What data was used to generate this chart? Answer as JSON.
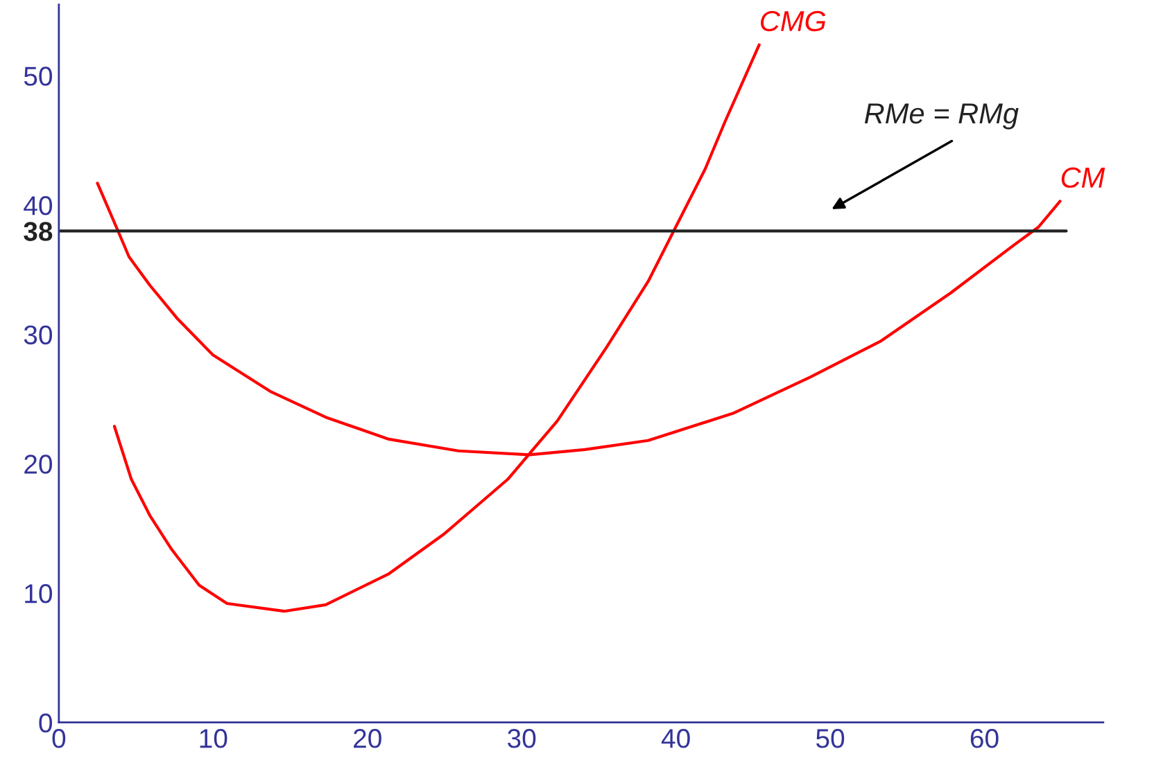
{
  "chart_data": {
    "type": "line",
    "xlim": [
      0,
      67.7
    ],
    "ylim": [
      0,
      55.5
    ],
    "xticks": [
      0,
      10,
      20,
      30,
      40,
      50,
      60
    ],
    "yticks": [
      0,
      10,
      20,
      30,
      {
        "value": 38,
        "label": "38"
      },
      40,
      50
    ],
    "grid": false,
    "legend": false,
    "marker": "none",
    "line_style": "solid",
    "series": [
      {
        "name": "CMG",
        "color": "#ff0000",
        "x": [
          3.6,
          4.7,
          5.9,
          7.3,
          9.1,
          10.9,
          14.6,
          17.3,
          21.4,
          25,
          29.1,
          32.3,
          35.5,
          38.2,
          39.9,
          41.9,
          43.2,
          45.4
        ],
        "values": [
          22.9,
          18.8,
          16,
          13.4,
          10.6,
          9.2,
          8.6,
          9.1,
          11.5,
          14.6,
          18.8,
          23.3,
          29,
          34.1,
          38.1,
          42.8,
          46.5,
          52.4
        ]
      },
      {
        "name": "CM",
        "color": "#ff0000",
        "x": [
          2.5,
          3.8,
          4.55,
          5.9,
          7.7,
          10,
          13.7,
          17.3,
          21.4,
          25.9,
          30.5,
          34.1,
          38.2,
          43.7,
          48.7,
          53.3,
          57.8,
          61.9,
          63.5,
          64.9
        ],
        "values": [
          41.7,
          38.1,
          36,
          33.8,
          31.2,
          28.4,
          25.6,
          23.6,
          21.9,
          21,
          20.7,
          21.1,
          21.8,
          23.9,
          26.7,
          29.5,
          33.2,
          36.9,
          38.3,
          40.3
        ]
      },
      {
        "color": "#222222",
        "x": [
          0,
          65.3
        ],
        "values": [
          38,
          38
        ]
      }
    ],
    "annotations": [
      "RMe = RMg"
    ]
  }
}
